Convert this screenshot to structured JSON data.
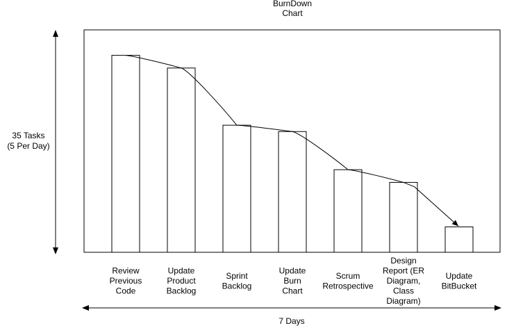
{
  "chart_data": {
    "type": "bar",
    "title_lines": [
      "BurnDown",
      "Chart"
    ],
    "y_axis_label_lines": [
      "35 Tasks",
      "(5 Per Day)"
    ],
    "x_axis_label": "7 Days",
    "ylim": [
      0,
      35
    ],
    "categories": [
      [
        "Review",
        "Previous",
        "Code"
      ],
      [
        "Update",
        "Product",
        "Backlog"
      ],
      [
        "Sprint",
        "Backlog"
      ],
      [
        "Update",
        "Burn",
        "Chart"
      ],
      [
        "Scrum",
        "Retrospective"
      ],
      [
        "Design",
        "Report (ER",
        "Diagram,",
        "Class",
        "Diagram)"
      ],
      [
        "Update",
        "BitBucket"
      ]
    ],
    "values": [
      31,
      29,
      20,
      19,
      13,
      11,
      4
    ],
    "trend_line": true,
    "grid": false
  }
}
